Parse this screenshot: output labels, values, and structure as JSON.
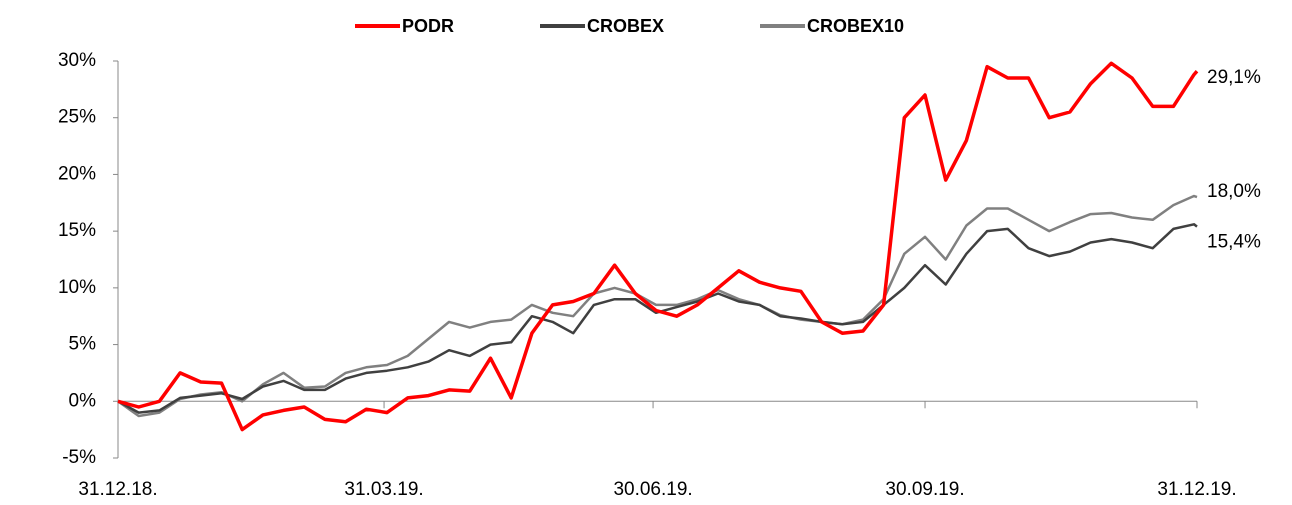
{
  "chart_data": {
    "type": "line",
    "x": [
      "31.12.18.",
      "07.01.19.",
      "14.01.19.",
      "21.01.19.",
      "28.01.19.",
      "04.02.19.",
      "11.02.19.",
      "18.02.19.",
      "25.02.19.",
      "04.03.19.",
      "11.03.19.",
      "18.03.19.",
      "25.03.19.",
      "01.04.19.",
      "08.04.19.",
      "15.04.19.",
      "22.04.19.",
      "29.04.19.",
      "06.05.19.",
      "13.05.19.",
      "20.05.19.",
      "27.05.19.",
      "03.06.19.",
      "10.06.19.",
      "17.06.19.",
      "24.06.19.",
      "01.07.19.",
      "08.07.19.",
      "15.07.19.",
      "22.07.19.",
      "29.07.19.",
      "05.08.19.",
      "12.08.19.",
      "19.08.19.",
      "26.08.19.",
      "02.09.19.",
      "09.09.19.",
      "16.09.19.",
      "23.09.19.",
      "30.09.19.",
      "07.10.19.",
      "14.10.19.",
      "21.10.19.",
      "28.10.19.",
      "04.11.19.",
      "11.11.19.",
      "18.11.19.",
      "25.11.19.",
      "02.12.19.",
      "09.12.19.",
      "16.12.19.",
      "23.12.19.",
      "30.12.19.",
      "31.12.19."
    ],
    "series": [
      {
        "name": "PODR",
        "color": "#ff0000",
        "width": 3.5,
        "values": [
          0,
          -0.5,
          0,
          2.5,
          1.7,
          1.6,
          -2.5,
          -1.2,
          -0.8,
          -0.5,
          -1.6,
          -1.8,
          -0.7,
          -1,
          0.3,
          0.5,
          1,
          0.9,
          3.8,
          0.3,
          6,
          8.5,
          8.8,
          9.5,
          12,
          9.5,
          8,
          7.5,
          8.5,
          10,
          11.5,
          10.5,
          10,
          9.7,
          7,
          6,
          6.2,
          8.5,
          25,
          27,
          19.5,
          23,
          29.5,
          28.5,
          28.5,
          25,
          25.5,
          28,
          29.8,
          28.5,
          26,
          26,
          28.8,
          29.1
        ],
        "value_labels": [
          null,
          null,
          null,
          null,
          null,
          null,
          null,
          null,
          null,
          null,
          null,
          null,
          null,
          null,
          null,
          null,
          null,
          null,
          null,
          null,
          null,
          null,
          null,
          null,
          null,
          null,
          null,
          null,
          null,
          null,
          null,
          null,
          null,
          null,
          null,
          null,
          null,
          null,
          null,
          null,
          null,
          null,
          null,
          null,
          null,
          null,
          null,
          null,
          null,
          null,
          null,
          null,
          null,
          "29,1%"
        ]
      },
      {
        "name": "CROBEX",
        "color": "#404040",
        "width": 2.5,
        "values": [
          0,
          -1,
          -0.8,
          0.3,
          0.5,
          0.7,
          0.2,
          1.3,
          1.8,
          1,
          1,
          2,
          2.5,
          2.7,
          3,
          3.5,
          4.5,
          4,
          5,
          5.2,
          7.5,
          7,
          6,
          8.5,
          9,
          9,
          7.8,
          8.3,
          8.8,
          9.5,
          8.8,
          8.5,
          7.5,
          7.3,
          7,
          6.8,
          7,
          8.5,
          10,
          12,
          10.3,
          13,
          15,
          15.2,
          13.5,
          12.8,
          13.2,
          14,
          14.3,
          14,
          13.5,
          15.2,
          15.6,
          15.4
        ],
        "value_labels": [
          null,
          null,
          null,
          null,
          null,
          null,
          null,
          null,
          null,
          null,
          null,
          null,
          null,
          null,
          null,
          null,
          null,
          null,
          null,
          null,
          null,
          null,
          null,
          null,
          null,
          null,
          null,
          null,
          null,
          null,
          null,
          null,
          null,
          null,
          null,
          null,
          null,
          null,
          null,
          null,
          null,
          null,
          null,
          null,
          null,
          null,
          null,
          null,
          null,
          null,
          null,
          null,
          null,
          "15,4%"
        ]
      },
      {
        "name": "CROBEX10",
        "color": "#808080",
        "width": 2.5,
        "values": [
          0,
          -1.3,
          -1,
          0.2,
          0.6,
          0.8,
          0,
          1.5,
          2.5,
          1.2,
          1.3,
          2.5,
          3,
          3.2,
          4,
          5.5,
          7,
          6.5,
          7,
          7.2,
          8.5,
          7.8,
          7.5,
          9.5,
          10,
          9.5,
          8.5,
          8.5,
          9,
          9.8,
          9,
          8.5,
          7.6,
          7.2,
          7,
          6.8,
          7.2,
          9,
          13,
          14.5,
          12.5,
          15.5,
          17,
          17,
          16,
          15,
          15.8,
          16.5,
          16.6,
          16.2,
          16,
          17.3,
          18.1,
          18.0
        ],
        "value_labels": [
          null,
          null,
          null,
          null,
          null,
          null,
          null,
          null,
          null,
          null,
          null,
          null,
          null,
          null,
          null,
          null,
          null,
          null,
          null,
          null,
          null,
          null,
          null,
          null,
          null,
          null,
          null,
          null,
          null,
          null,
          null,
          null,
          null,
          null,
          null,
          null,
          null,
          null,
          null,
          null,
          null,
          null,
          null,
          null,
          null,
          null,
          null,
          null,
          null,
          null,
          null,
          null,
          null,
          "18,0%"
        ]
      }
    ],
    "xlim": [
      "31.12.18.",
      "31.12.19."
    ],
    "xticks": [
      "31.12.18.",
      "31.03.19.",
      "30.06.19.",
      "30.09.19.",
      "31.12.19."
    ],
    "ylim": [
      -5,
      30
    ],
    "yticks": [
      {
        "value": -5,
        "label": "-5%"
      },
      {
        "value": 0,
        "label": "0%"
      },
      {
        "value": 5,
        "label": "5%"
      },
      {
        "value": 10,
        "label": "10%"
      },
      {
        "value": 15,
        "label": "15%"
      },
      {
        "value": 20,
        "label": "20%"
      },
      {
        "value": 25,
        "label": "25%"
      },
      {
        "value": 30,
        "label": "30%"
      }
    ],
    "grid": false,
    "legend": "top"
  }
}
